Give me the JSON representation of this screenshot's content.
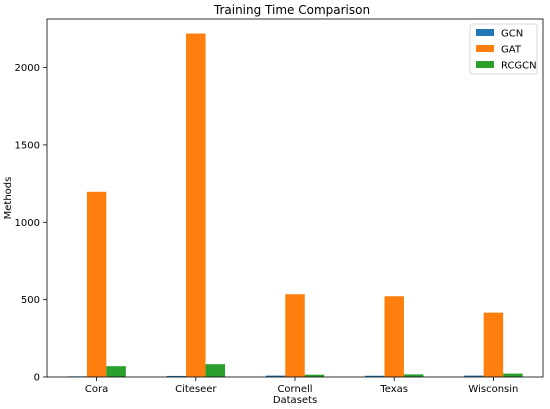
{
  "chart_data": {
    "type": "bar",
    "title": "Training Time Comparison",
    "xlabel": "Datasets",
    "ylabel": "Methods",
    "categories": [
      "Cora",
      "Citeseer",
      "Cornell",
      "Texas",
      "Wisconsin"
    ],
    "series": [
      {
        "name": "GCN",
        "color": "#1f77b4",
        "values": [
          4,
          7,
          9,
          8,
          9
        ]
      },
      {
        "name": "GAT",
        "color": "#ff7f0e",
        "values": [
          1197,
          2220,
          535,
          522,
          416
        ]
      },
      {
        "name": "RCGCN",
        "color": "#2ca02c",
        "values": [
          70,
          83,
          15,
          17,
          22
        ]
      }
    ],
    "ylim": [
      0,
      2314
    ],
    "yticks": [
      0,
      500,
      1000,
      1500,
      2000
    ],
    "grid": false,
    "legend_position": "top-right"
  }
}
